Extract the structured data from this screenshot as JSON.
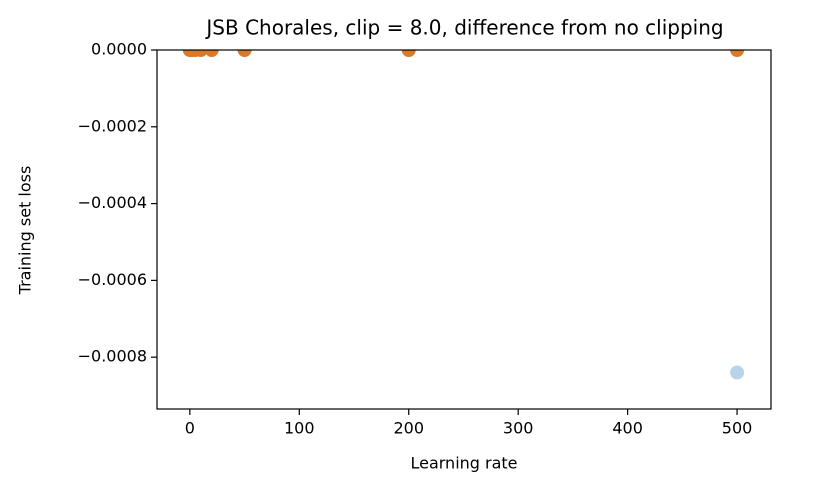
{
  "chart_data": {
    "type": "scatter",
    "title": "JSB Chorales, clip = 8.0, difference from no clipping",
    "x_label": "Learning rate",
    "y_label": "Training set loss",
    "series": [
      {
        "color": "#b8d3ea",
        "x": [
          500
        ],
        "values": [
          -0.00084
        ]
      },
      {
        "color": "#d97a2b",
        "x": [
          0,
          1,
          2,
          5,
          10,
          20,
          50,
          200,
          500
        ],
        "values": [
          0,
          0,
          0,
          0,
          0,
          0,
          0,
          0,
          0
        ]
      }
    ],
    "xlim": [
      -30,
      531
    ],
    "ylim": [
      -0.000935,
      0
    ],
    "xticks": [
      0,
      100,
      200,
      300,
      400,
      500
    ],
    "yticks": [
      {
        "value": 0,
        "label": "0.0000"
      },
      {
        "value": -0.0002,
        "label": "−0.0002"
      },
      {
        "value": -0.0004,
        "label": "−0.0004"
      },
      {
        "value": -0.0006,
        "label": "−0.0006"
      },
      {
        "value": -0.0008,
        "label": "−0.0008"
      }
    ]
  }
}
